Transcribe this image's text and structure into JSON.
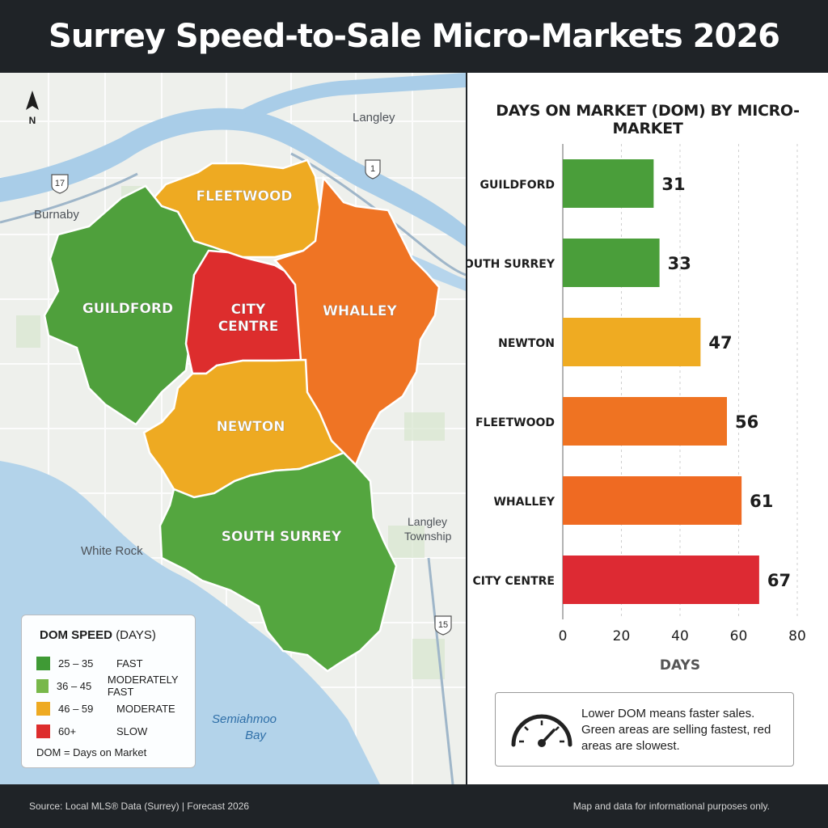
{
  "title": "Surrey Speed-to-Sale Micro-Markets 2026",
  "map": {
    "compass": "N",
    "places": [
      "Langley",
      "Burnaby",
      "White Rock",
      "Langley Township",
      "Semiahmoo Bay"
    ],
    "highway_shields": [
      "17",
      "1",
      "15"
    ],
    "regions": [
      {
        "name": "FLEETWOOD",
        "color": "#eeaa22"
      },
      {
        "name": "GUILDFORD",
        "color": "#4fa03c"
      },
      {
        "name": "CITY CENTRE",
        "color": "#dd2d2d"
      },
      {
        "name": "WHALLEY",
        "color": "#ef7424"
      },
      {
        "name": "NEWTON",
        "color": "#eeaa22"
      },
      {
        "name": "SOUTH SURREY",
        "color": "#54a63f"
      }
    ]
  },
  "legend": {
    "title_bold": "DOM SPEED",
    "title_rest": "(DAYS)",
    "items": [
      {
        "range": "25 – 35",
        "label": "FAST",
        "color": "#3f9a35"
      },
      {
        "range": "36 – 45",
        "label": "MODERATELY FAST",
        "color": "#78b84a"
      },
      {
        "range": "46 – 59",
        "label": "MODERATE",
        "color": "#eeaa22"
      },
      {
        "range": "60+",
        "label": "SLOW",
        "color": "#dd2d2d"
      }
    ],
    "note": "DOM = Days on Market"
  },
  "chart_data": {
    "type": "bar",
    "orientation": "horizontal",
    "title": "DAYS ON MARKET (DOM) BY MICRO-MARKET",
    "categories": [
      "GUILDFORD",
      "SOUTH SURREY",
      "NEWTON",
      "FLEETWOOD",
      "WHALLEY",
      "CITY CENTRE"
    ],
    "values": [
      31,
      33,
      47,
      56,
      61,
      67
    ],
    "colors": [
      "#4a9e3a",
      "#4a9e3a",
      "#efab22",
      "#ef7322",
      "#ef6a22",
      "#dd2a33"
    ],
    "xlabel": "DAYS",
    "ylabel": "",
    "xlim": [
      0,
      80
    ],
    "xticks": [
      0,
      20,
      40,
      60,
      80
    ],
    "grid": true
  },
  "info": {
    "text": "Lower DOM means faster sales. Green areas are selling fastest, red areas are slowest."
  },
  "footer": {
    "source": "Source: Local MLS® Data (Surrey)  |  Forecast 2026",
    "disclaimer": "Map and data for informational purposes only."
  }
}
